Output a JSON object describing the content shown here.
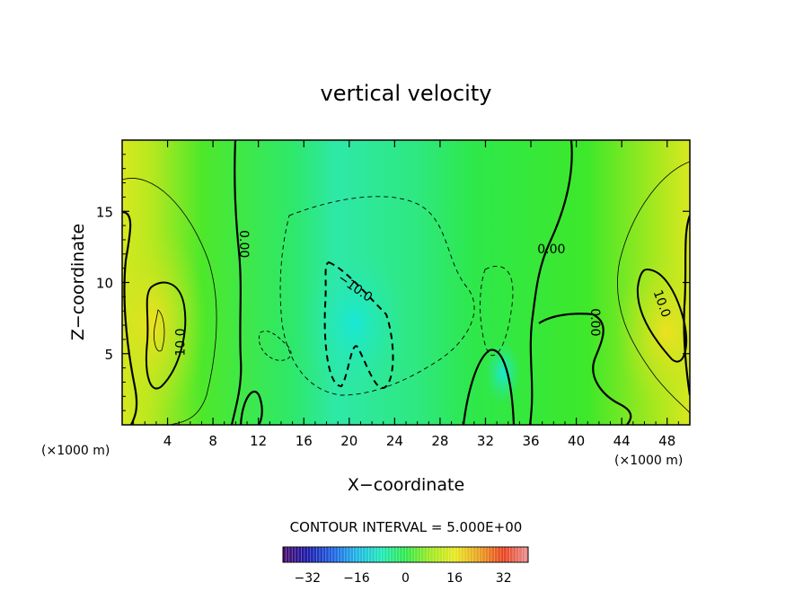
{
  "chart_data": {
    "type": "heatmap",
    "title": "vertical velocity",
    "xlabel": "X−coordinate",
    "ylabel": "Z−coordinate",
    "x_unit_label": "(×1000 m)",
    "x_unit_label_right": "(×1000 m)",
    "xlim": [
      0,
      50
    ],
    "ylim": [
      0,
      20
    ],
    "x_ticks": [
      "4",
      "8",
      "12",
      "16",
      "20",
      "24",
      "28",
      "32",
      "36",
      "40",
      "44",
      "48"
    ],
    "x_tick_values": [
      4,
      8,
      12,
      16,
      20,
      24,
      28,
      32,
      36,
      40,
      44,
      48
    ],
    "y_ticks": [
      "5",
      "10",
      "15"
    ],
    "y_tick_values": [
      5,
      10,
      15
    ],
    "contour_interval_text": "CONTOUR INTERVAL = 5.000E+00",
    "contour_labels": [
      {
        "text": "0.00",
        "x": 10.7,
        "z": 12.7,
        "rotate": 90
      },
      {
        "text": "10.0",
        "x": 5.2,
        "z": 5.8,
        "rotate": -90
      },
      {
        "text": "−10.0",
        "x": 20.5,
        "z": 9.6,
        "rotate": 35
      },
      {
        "text": "0.00",
        "x": 37.8,
        "z": 12.3,
        "rotate": 0
      },
      {
        "text": "0.00",
        "x": 41.6,
        "z": 7.2,
        "rotate": 90
      },
      {
        "text": "10.0",
        "x": 47.5,
        "z": 8.5,
        "rotate": 70
      }
    ],
    "colorbar": {
      "range": [
        -40,
        40
      ],
      "tick_labels": [
        "−32",
        "−16",
        "0",
        "16",
        "32"
      ],
      "tick_values": [
        -32,
        -16,
        0,
        16,
        32
      ],
      "colors": [
        "#4b0d6b",
        "#1a1aa8",
        "#1f5fe0",
        "#1fb4e6",
        "#1fe8b8",
        "#2ee84a",
        "#9ee81f",
        "#e8e81f",
        "#e8a01f",
        "#e8401f",
        "#e89090"
      ]
    },
    "grid": false,
    "legend": "none"
  }
}
